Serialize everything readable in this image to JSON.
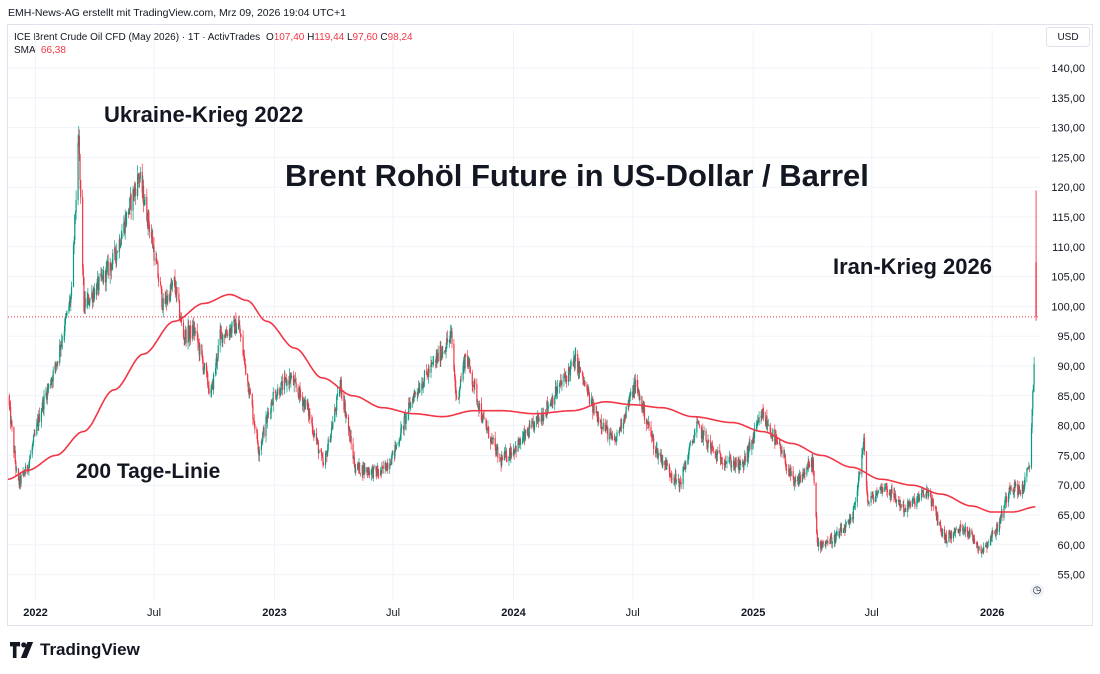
{
  "header": {
    "attribution": "EMH-News-AG erstellt mit TradingView.com, Mrz 09, 2026 19:04 UTC+1"
  },
  "legend": {
    "symbol": "ICE Brent Crude Oil CFD (May 2026) · 1T · ActivTrades",
    "o_label": "O",
    "o_value": "107,40",
    "h_label": "H",
    "h_value": "119,44",
    "l_label": "L",
    "l_value": "97,60",
    "c_label": "C",
    "c_value": "98,24",
    "sma_label": "SMA",
    "sma_value": "66,38"
  },
  "currency_button": "USD",
  "annotations": {
    "title": "Brent Rohöl Future in US-Dollar / Barrel",
    "ukraine": "Ukraine-Krieg 2022",
    "iran": "Iran-Krieg 2026",
    "sma_label": "200 Tage-Linie"
  },
  "logo": {
    "text": "TradingView",
    "icon": "tradingview-logo-icon"
  },
  "colors": {
    "up": "#089981",
    "down": "#f23645",
    "sma": "#f23645",
    "grid": "#f0f3fa",
    "axis_text": "#131722"
  },
  "chart_data": {
    "type": "candlestick",
    "y_axis": {
      "ticks": [
        "140,00",
        "135,00",
        "130,00",
        "125,00",
        "120,00",
        "115,00",
        "110,00",
        "105,00",
        "100,00",
        "95,00",
        "90,00",
        "85,00",
        "80,00",
        "75,00",
        "70,00",
        "65,00",
        "60,00",
        "55,00"
      ],
      "tick_values": [
        140,
        135,
        130,
        125,
        120,
        115,
        110,
        105,
        100,
        95,
        90,
        85,
        80,
        75,
        70,
        65,
        60,
        55
      ],
      "ylim": [
        52,
        142
      ]
    },
    "x_axis": {
      "ticks": [
        "2022",
        "Jul",
        "2023",
        "Jul",
        "2024",
        "Jul",
        "2025",
        "Jul",
        "2026"
      ],
      "tick_dates": [
        "2022-01-01",
        "2022-07-01",
        "2023-01-01",
        "2023-07-01",
        "2024-01-01",
        "2024-07-01",
        "2025-01-01",
        "2025-07-01",
        "2026-01-01"
      ],
      "bold": [
        true,
        false,
        true,
        false,
        true,
        false,
        true,
        false,
        true
      ]
    },
    "current_price": {
      "value": 98.24,
      "line": "dotted"
    },
    "last_bar": {
      "open": 107.4,
      "high": 119.44,
      "low": 97.6,
      "close": 98.24
    },
    "price_path": [
      [
        "2021-11-20",
        85
      ],
      [
        "2021-12-05",
        70
      ],
      [
        "2021-12-20",
        73
      ],
      [
        "2022-01-10",
        83
      ],
      [
        "2022-02-01",
        90
      ],
      [
        "2022-02-25",
        102
      ],
      [
        "2022-03-08",
        128
      ],
      [
        "2022-03-16",
        100
      ],
      [
        "2022-04-10",
        104
      ],
      [
        "2022-05-01",
        108
      ],
      [
        "2022-06-08",
        122
      ],
      [
        "2022-06-25",
        113
      ],
      [
        "2022-07-15",
        100
      ],
      [
        "2022-08-01",
        104
      ],
      [
        "2022-08-15",
        95
      ],
      [
        "2022-09-01",
        96
      ],
      [
        "2022-09-26",
        85
      ],
      [
        "2022-10-10",
        95
      ],
      [
        "2022-11-07",
        97
      ],
      [
        "2022-12-08",
        76
      ],
      [
        "2022-12-30",
        85
      ],
      [
        "2023-01-25",
        88
      ],
      [
        "2023-02-20",
        83
      ],
      [
        "2023-03-17",
        73
      ],
      [
        "2023-04-12",
        87
      ],
      [
        "2023-05-04",
        73
      ],
      [
        "2023-06-12",
        72
      ],
      [
        "2023-07-01",
        75
      ],
      [
        "2023-08-01",
        85
      ],
      [
        "2023-09-28",
        95
      ],
      [
        "2023-10-06",
        84
      ],
      [
        "2023-10-20",
        92
      ],
      [
        "2023-11-15",
        81
      ],
      [
        "2023-12-12",
        74
      ],
      [
        "2024-01-10",
        77
      ],
      [
        "2024-02-15",
        82
      ],
      [
        "2024-04-05",
        91
      ],
      [
        "2024-05-01",
        83
      ],
      [
        "2024-06-03",
        77
      ],
      [
        "2024-07-05",
        87
      ],
      [
        "2024-08-05",
        76
      ],
      [
        "2024-09-10",
        70
      ],
      [
        "2024-10-07",
        80
      ],
      [
        "2024-11-05",
        75
      ],
      [
        "2024-12-15",
        73
      ],
      [
        "2025-01-15",
        82
      ],
      [
        "2025-02-15",
        75
      ],
      [
        "2025-03-05",
        70
      ],
      [
        "2025-04-02",
        74
      ],
      [
        "2025-04-09",
        60
      ],
      [
        "2025-05-05",
        61
      ],
      [
        "2025-06-01",
        64
      ],
      [
        "2025-06-19",
        77
      ],
      [
        "2025-06-25",
        67
      ],
      [
        "2025-07-20",
        70
      ],
      [
        "2025-08-20",
        66
      ],
      [
        "2025-09-25",
        69
      ],
      [
        "2025-10-20",
        61
      ],
      [
        "2025-11-20",
        63
      ],
      [
        "2025-12-16",
        59
      ],
      [
        "2026-01-10",
        63
      ],
      [
        "2026-01-28",
        70
      ],
      [
        "2026-02-15",
        69
      ],
      [
        "2026-02-27",
        73
      ],
      [
        "2026-03-02",
        80
      ],
      [
        "2026-03-09",
        98.24
      ]
    ],
    "sma": {
      "name": "SMA",
      "path": [
        [
          "2021-11-20",
          71
        ],
        [
          "2021-12-20",
          72.5
        ],
        [
          "2022-02-01",
          75
        ],
        [
          "2022-03-15",
          79
        ],
        [
          "2022-05-01",
          86
        ],
        [
          "2022-06-15",
          92
        ],
        [
          "2022-08-01",
          97.5
        ],
        [
          "2022-09-15",
          100.5
        ],
        [
          "2022-10-25",
          102
        ],
        [
          "2022-11-20",
          101
        ],
        [
          "2022-12-20",
          97.5
        ],
        [
          "2023-02-01",
          93
        ],
        [
          "2023-03-15",
          88
        ],
        [
          "2023-05-01",
          85
        ],
        [
          "2023-06-15",
          83
        ],
        [
          "2023-08-01",
          82
        ],
        [
          "2023-09-15",
          81.5
        ],
        [
          "2023-11-01",
          82.5
        ],
        [
          "2023-12-15",
          82.5
        ],
        [
          "2024-02-01",
          82
        ],
        [
          "2024-04-01",
          82.5
        ],
        [
          "2024-05-20",
          84
        ],
        [
          "2024-07-01",
          83.5
        ],
        [
          "2024-08-15",
          83
        ],
        [
          "2024-10-01",
          81.5
        ],
        [
          "2024-12-01",
          80.5
        ],
        [
          "2025-01-15",
          79
        ],
        [
          "2025-03-01",
          77
        ],
        [
          "2025-04-15",
          75
        ],
        [
          "2025-06-01",
          73
        ],
        [
          "2025-07-15",
          71
        ],
        [
          "2025-09-01",
          70
        ],
        [
          "2025-10-15",
          68.5
        ],
        [
          "2025-12-01",
          66.5
        ],
        [
          "2026-01-01",
          65.5
        ],
        [
          "2026-02-01",
          65.5
        ],
        [
          "2026-03-09",
          66.38
        ]
      ]
    }
  }
}
